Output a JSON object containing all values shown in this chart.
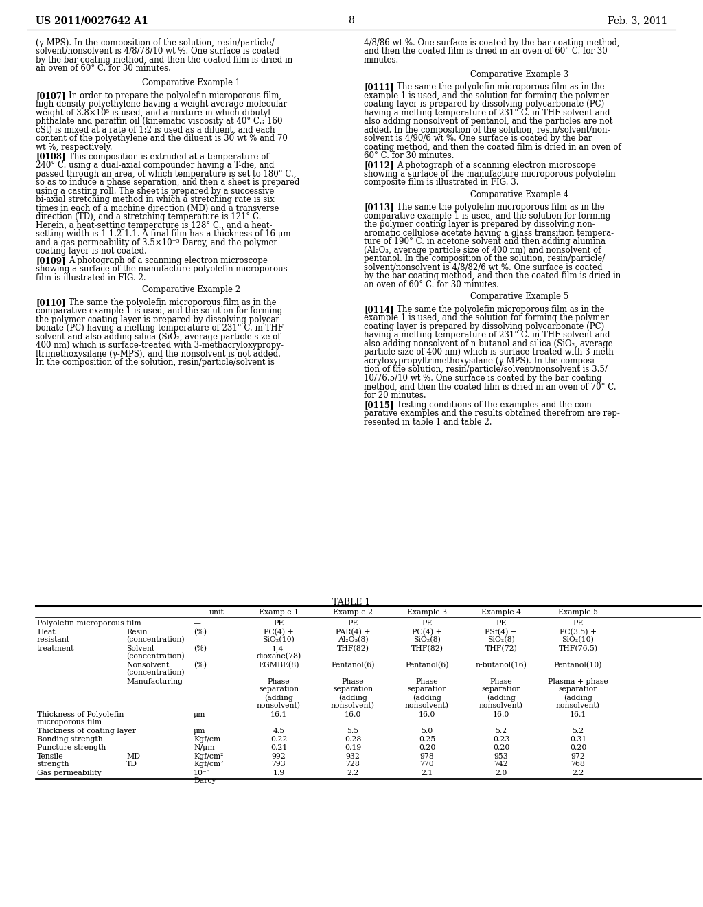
{
  "header_left": "US 2011/0027642 A1",
  "header_right": "Feb. 3, 2011",
  "page_number": "8",
  "background_color": "#ffffff",
  "left_col_paragraphs": [
    {
      "type": "plain",
      "lines": [
        "(γ-MPS). In the composition of the solution, resin/particle/",
        "solvent/nonsolvent is 4/8/78/10 wt %. One surface is coated",
        "by the bar coating method, and then the coated film is dried in",
        "an oven of 60° C. for 30 minutes."
      ]
    },
    {
      "type": "heading",
      "text": "Comparative Example 1"
    },
    {
      "type": "numbered",
      "num": "[0107]",
      "lines": [
        "    In order to prepare the polyolefin microporous film,",
        "high density polyethylene having a weight average molecular",
        "weight of 3.8×10⁵ is used, and a mixture in which dibutyl",
        "phthalate and paraffin oil (kinematic viscosity at 40° C.: 160",
        "cSt) is mixed at a rate of 1:2 is used as a diluent, and each",
        "content of the polyethylene and the diluent is 30 wt % and 70",
        "wt %, respectively."
      ]
    },
    {
      "type": "numbered",
      "num": "[0108]",
      "lines": [
        "    This composition is extruded at a temperature of",
        "240° C. using a dual-axial compounder having a T-die, and",
        "passed through an area, of which temperature is set to 180° C.,",
        "so as to induce a phase separation, and then a sheet is prepared",
        "using a casting roll. The sheet is prepared by a successive",
        "bi-axial stretching method in which a stretching rate is six",
        "times in each of a machine direction (MD) and a transverse",
        "direction (TD), and a stretching temperature is 121° C.",
        "Herein, a heat-setting temperature is 128° C., and a heat-",
        "setting width is 1-1.2-1.1. A final film has a thickness of 16 μm",
        "and a gas permeability of 3.5×10⁻⁵ Darcy, and the polymer",
        "coating layer is not coated."
      ]
    },
    {
      "type": "numbered",
      "num": "[0109]",
      "lines": [
        "    A photograph of a scanning electron microscope",
        "showing a surface of the manufacture polyolefin microporous",
        "film is illustrated in FIG. 2."
      ]
    },
    {
      "type": "heading",
      "text": "Comparative Example 2"
    },
    {
      "type": "numbered",
      "num": "[0110]",
      "lines": [
        "    The same the polyolefin microporous film as in the",
        "comparative example 1 is used, and the solution for forming",
        "the polymer coating layer is prepared by dissolving polycar-",
        "bonate (PC) having a melting temperature of 231° C. in THF",
        "solvent and also adding silica (SiO₂, average particle size of",
        "400 nm) which is surface-treated with 3-methacryloxypropy-",
        "ltrimethoxysilane (γ-MPS), and the nonsolvent is not added.",
        "In the composition of the solution, resin/particle/solvent is"
      ]
    }
  ],
  "right_col_paragraphs": [
    {
      "type": "plain",
      "lines": [
        "4/8/86 wt %. One surface is coated by the bar coating method,",
        "and then the coated film is dried in an oven of 60° C. for 30",
        "minutes."
      ]
    },
    {
      "type": "heading",
      "text": "Comparative Example 3"
    },
    {
      "type": "numbered",
      "num": "[0111]",
      "lines": [
        "    The same the polyolefin microporous film as in the",
        "example 1 is used, and the solution for forming the polymer",
        "coating layer is prepared by dissolving polycarbonate (PC)",
        "having a melting temperature of 231° C. in THF solvent and",
        "also adding nonsolvent of pentanol, and the particles are not",
        "added. In the composition of the solution, resin/solvent/non-",
        "solvent is 4/90/6 wt %. One surface is coated by the bar",
        "coating method, and then the coated film is dried in an oven of",
        "60° C. for 30 minutes."
      ]
    },
    {
      "type": "numbered",
      "num": "[0112]",
      "lines": [
        "    A photograph of a scanning electron microscope",
        "showing a surface of the manufacture microporous polyolefin",
        "composite film is illustrated in FIG. 3."
      ]
    },
    {
      "type": "heading",
      "text": "Comparative Example 4"
    },
    {
      "type": "numbered",
      "num": "[0113]",
      "lines": [
        "    The same the polyolefin microporous film as in the",
        "comparative example 1 is used, and the solution for forming",
        "the polymer coating layer is prepared by dissolving non-",
        "aromatic cellulose acetate having a glass transition tempera-",
        "ture of 190° C. in acetone solvent and then adding alumina",
        "(Al₂O₃, average particle size of 400 nm) and nonsolvent of",
        "pentanol. In the composition of the solution, resin/particle/",
        "solvent/nonsolvent is 4/8/82/6 wt %. One surface is coated",
        "by the bar coating method, and then the coated film is dried in",
        "an oven of 60° C. for 30 minutes."
      ]
    },
    {
      "type": "heading",
      "text": "Comparative Example 5"
    },
    {
      "type": "numbered",
      "num": "[0114]",
      "lines": [
        "    The same the polyolefin microporous film as in the",
        "example 1 is used, and the solution for forming the polymer",
        "coating layer is prepared by dissolving polycarbonate (PC)",
        "having a melting temperature of 231° C. in THF solvent and",
        "also adding nonsolvent of n-butanol and silica (SiO₂, average",
        "particle size of 400 nm) which is surface-treated with 3-meth-",
        "acryloxypropyltrimethoxysilane (γ-MPS). In the composi-",
        "tion of the solution, resin/particle/solvent/nonsolvent is 3.5/",
        "10/76.5/10 wt %. One surface is coated by the bar coating",
        "method, and then the coated film is dried in an oven of 70° C.",
        "for 20 minutes."
      ]
    },
    {
      "type": "numbered",
      "num": "[0115]",
      "lines": [
        "    Testing conditions of the examples and the com-",
        "parative examples and the results obtained therefrom are rep-",
        "resented in table 1 and table 2."
      ]
    }
  ],
  "table_title": "TABLE 1",
  "table_col_headers": [
    "unit",
    "Example 1",
    "Example 2",
    "Example 3",
    "Example 4",
    "Example 5"
  ],
  "table_rows": [
    [
      [
        "Polyolefin microporous film",
        ""
      ],
      [
        "",
        ""
      ],
      [
        "—",
        ""
      ],
      [
        "PE",
        ""
      ],
      [
        "PE",
        ""
      ],
      [
        "PE",
        ""
      ],
      [
        "PE",
        ""
      ],
      [
        "PE",
        ""
      ]
    ],
    [
      [
        "Heat",
        "resistant"
      ],
      [
        "Resin",
        "(concentration)"
      ],
      [
        "(%)",
        ""
      ],
      [
        "PC(4) +",
        "SiO₂(10)"
      ],
      [
        "PAR(4) +",
        "Al₂O₃(8)"
      ],
      [
        "PC(4) +",
        "SiO₂(8)"
      ],
      [
        "PSf(4) +",
        "SiO₂(8)"
      ],
      [
        "PC(3.5) +",
        "SiO₂(10)"
      ]
    ],
    [
      [
        "treatment",
        ""
      ],
      [
        "Solvent",
        "(concentration)"
      ],
      [
        "(%)",
        ""
      ],
      [
        "1,4-",
        "dioxane(78)"
      ],
      [
        "THF(82)",
        ""
      ],
      [
        "THF(82)",
        ""
      ],
      [
        "THF(72)",
        ""
      ],
      [
        "THF(76.5)",
        ""
      ]
    ],
    [
      [
        "",
        ""
      ],
      [
        "Nonsolvent",
        "(concentration)"
      ],
      [
        "(%)",
        ""
      ],
      [
        "EGMBE(8)",
        ""
      ],
      [
        "Pentanol(6)",
        ""
      ],
      [
        "Pentanol(6)",
        ""
      ],
      [
        "n-butanol(16)",
        ""
      ],
      [
        "Pentanol(10)",
        ""
      ]
    ],
    [
      [
        "",
        ""
      ],
      [
        "Manufacturing",
        ""
      ],
      [
        "—",
        ""
      ],
      [
        "Phase",
        "separation"
      ],
      [
        "Phase",
        "separation"
      ],
      [
        "Phase",
        "separation"
      ],
      [
        "Phase",
        "separation"
      ],
      [
        "Plasma + phase",
        "separation"
      ]
    ],
    [
      [
        "",
        ""
      ],
      [
        "",
        ""
      ],
      [
        "",
        ""
      ],
      [
        "(adding",
        "nonsolvent)"
      ],
      [
        "(adding",
        "nonsolvent)"
      ],
      [
        "(adding",
        "nonsolvent)"
      ],
      [
        "(adding",
        "nonsolvent)"
      ],
      [
        "(adding",
        "nonsolvent)"
      ]
    ],
    [
      [
        "Thickness of Polyolefin",
        "microporous film"
      ],
      [
        "",
        ""
      ],
      [
        "μm",
        ""
      ],
      [
        "16.1",
        ""
      ],
      [
        "16.0",
        ""
      ],
      [
        "16.0",
        ""
      ],
      [
        "16.0",
        ""
      ],
      [
        "16.1",
        ""
      ]
    ],
    [
      [
        "Thickness of coating layer",
        ""
      ],
      [
        "",
        ""
      ],
      [
        "μm",
        ""
      ],
      [
        "4.5",
        ""
      ],
      [
        "5.5",
        ""
      ],
      [
        "5.0",
        ""
      ],
      [
        "5.2",
        ""
      ],
      [
        "5.2",
        ""
      ]
    ],
    [
      [
        "Bonding strength",
        ""
      ],
      [
        "",
        ""
      ],
      [
        "Kgf/cm",
        ""
      ],
      [
        "0.22",
        ""
      ],
      [
        "0.28",
        ""
      ],
      [
        "0.25",
        ""
      ],
      [
        "0.23",
        ""
      ],
      [
        "0.31",
        ""
      ]
    ],
    [
      [
        "Puncture strength",
        ""
      ],
      [
        "",
        ""
      ],
      [
        "N/μm",
        ""
      ],
      [
        "0.21",
        ""
      ],
      [
        "0.19",
        ""
      ],
      [
        "0.20",
        ""
      ],
      [
        "0.20",
        ""
      ],
      [
        "0.20",
        ""
      ]
    ],
    [
      [
        "Tensile",
        "strength"
      ],
      [
        "MD",
        "TD"
      ],
      [
        "Kgf/cm²",
        "Kgf/cm²"
      ],
      [
        "992",
        "793"
      ],
      [
        "932",
        "728"
      ],
      [
        "978",
        "770"
      ],
      [
        "953",
        "742"
      ],
      [
        "972",
        "768"
      ]
    ],
    [
      [
        "Gas permeability",
        ""
      ],
      [
        "",
        ""
      ],
      [
        "10⁻⁵",
        "Darcy"
      ],
      [
        "1.9",
        ""
      ],
      [
        "2.2",
        ""
      ],
      [
        "2.1",
        ""
      ],
      [
        "2.0",
        ""
      ],
      [
        "2.2",
        ""
      ]
    ]
  ]
}
